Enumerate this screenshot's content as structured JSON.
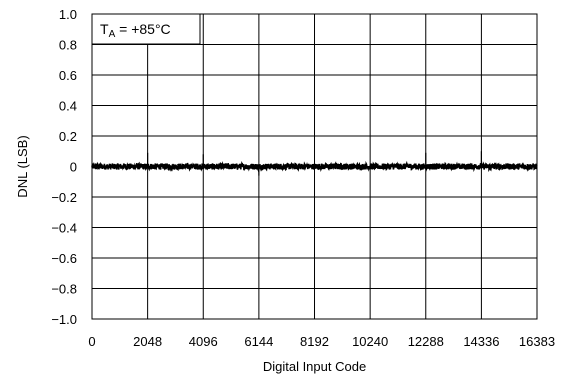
{
  "chart_data": {
    "type": "line",
    "xlabel": "Digital Input Code",
    "ylabel": "DNL (LSB)",
    "xlim": [
      0,
      16383
    ],
    "ylim": [
      -1.0,
      1.0
    ],
    "x_ticks": [
      0,
      2048,
      4096,
      6144,
      8192,
      10240,
      12288,
      14336,
      16383
    ],
    "y_ticks": [
      "1.0",
      "0.8",
      "0.6",
      "0.4",
      "0.2",
      "0",
      "−0.2",
      "−0.4",
      "−0.6",
      "−0.8",
      "−1.0"
    ],
    "y_tick_values": [
      1.0,
      0.8,
      0.6,
      0.4,
      0.2,
      0,
      -0.2,
      -0.4,
      -0.6,
      -0.8,
      -1.0
    ],
    "grid": true,
    "annotation": {
      "main": "T",
      "subscript": "A",
      "rest": " = +85°C"
    },
    "series": [
      {
        "noise_amplitude": 0.02,
        "spikes": [
          {
            "x": 2048,
            "y": 0.09
          },
          {
            "x": 4096,
            "y": 0.08
          },
          {
            "x": 6144,
            "y": -0.06
          },
          {
            "x": 12288,
            "y": 0.09
          },
          {
            "x": 14336,
            "y": 0.1
          }
        ],
        "color": "#000000"
      }
    ]
  }
}
